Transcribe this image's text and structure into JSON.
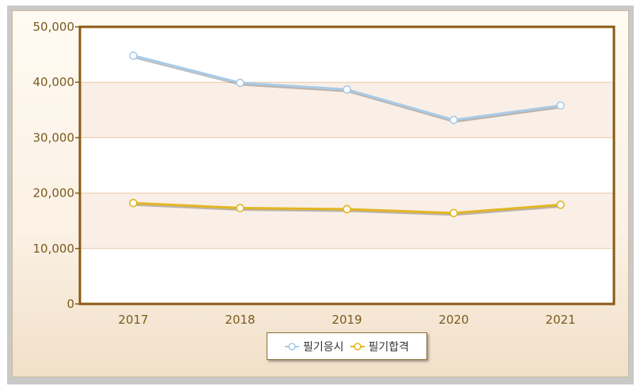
{
  "chart_data": {
    "type": "line",
    "categories": [
      "2017",
      "2018",
      "2019",
      "2020",
      "2021"
    ],
    "series": [
      {
        "name": "필기응시",
        "values": [
          44800,
          39900,
          38700,
          33200,
          35800
        ],
        "color": "#a9cbe8"
      },
      {
        "name": "필기합격",
        "values": [
          18200,
          17300,
          17100,
          16400,
          17900
        ],
        "color": "#e3b521"
      }
    ],
    "y_ticks": [
      "0",
      "10,000",
      "20,000",
      "30,000",
      "40,000",
      "50,000"
    ],
    "ylim": [
      0,
      50000
    ],
    "grid": true,
    "legend_position": "bottom-center",
    "colors": {
      "axis": "#8a5a12",
      "tick_text": "#7a5a1e",
      "band": "#f9efe6",
      "grid": "#e8c9a8"
    }
  }
}
